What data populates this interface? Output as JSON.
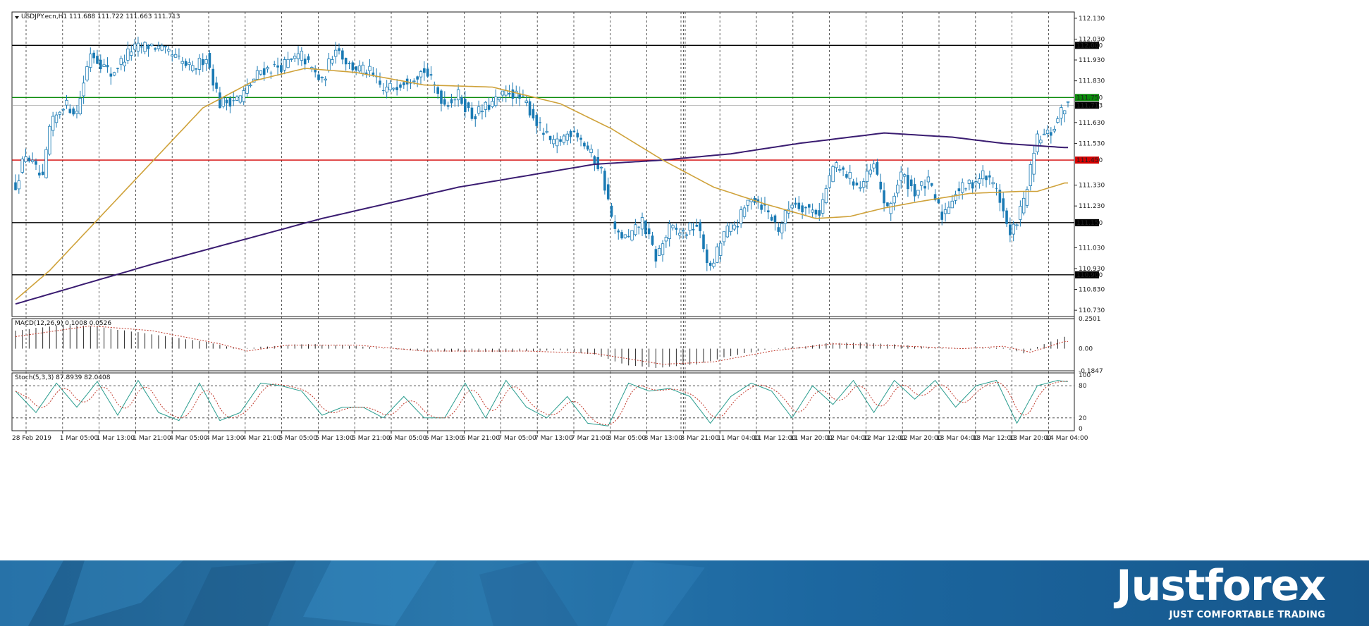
{
  "chart_data": [
    {
      "type": "candlestick",
      "title": "USDJPY.ecn,H1  111.688 111.722 111.663 111.713",
      "ylim": [
        110.7,
        112.16
      ],
      "y_ticks": [
        "112.130",
        "112.030",
        "111.930",
        "111.830",
        "111.630",
        "111.530",
        "111.330",
        "111.230",
        "111.030",
        "110.930",
        "110.830",
        "110.730"
      ],
      "x_ticks": [
        "28 Feb 2019",
        "1 Mar 05:00",
        "1 Mar 13:00",
        "1 Mar 21:00",
        "4 Mar 05:00",
        "4 Mar 13:00",
        "4 Mar 21:00",
        "5 Mar 05:00",
        "5 Mar 13:00",
        "5 Mar 21:00",
        "6 Mar 05:00",
        "6 Mar 13:00",
        "6 Mar 21:00",
        "7 Mar 05:00",
        "7 Mar 13:00",
        "7 Mar 21:00",
        "8 Mar 05:00",
        "8 Mar 13:00",
        "8 Mar 21:00",
        "11 Mar 04:00",
        "11 Mar 12:00",
        "11 Mar 20:00",
        "12 Mar 04:00",
        "12 Mar 12:00",
        "12 Mar 20:00",
        "13 Mar 04:00",
        "13 Mar 12:00",
        "13 Mar 20:00",
        "14 Mar 04:00"
      ],
      "horizontal_levels": [
        {
          "value": 112.0,
          "label": "112.000",
          "color": "#000000"
        },
        {
          "value": 111.75,
          "label": "111.750",
          "color": "#0a8a0a"
        },
        {
          "value": 111.45,
          "label": "111.450",
          "color": "#d40000"
        },
        {
          "value": 111.15,
          "label": "111.150",
          "color": "#000000"
        },
        {
          "value": 110.9,
          "label": "110.900",
          "color": "#000000"
        }
      ],
      "current_price": {
        "value": 111.713,
        "label": "111.713"
      },
      "anchors": [
        {
          "i": 0,
          "p": 111.33
        },
        {
          "i": 3,
          "p": 111.48
        },
        {
          "i": 8,
          "p": 111.35
        },
        {
          "i": 10,
          "p": 111.6
        },
        {
          "i": 14,
          "p": 111.72
        },
        {
          "i": 18,
          "p": 111.68
        },
        {
          "i": 22,
          "p": 111.97
        },
        {
          "i": 28,
          "p": 111.86
        },
        {
          "i": 34,
          "p": 111.98
        },
        {
          "i": 40,
          "p": 112.0
        },
        {
          "i": 46,
          "p": 111.95
        },
        {
          "i": 52,
          "p": 111.88
        },
        {
          "i": 56,
          "p": 111.95
        },
        {
          "i": 60,
          "p": 111.72
        },
        {
          "i": 66,
          "p": 111.75
        },
        {
          "i": 72,
          "p": 111.88
        },
        {
          "i": 78,
          "p": 111.9
        },
        {
          "i": 84,
          "p": 111.95
        },
        {
          "i": 90,
          "p": 111.82
        },
        {
          "i": 94,
          "p": 112.0
        },
        {
          "i": 98,
          "p": 111.9
        },
        {
          "i": 104,
          "p": 111.87
        },
        {
          "i": 108,
          "p": 111.78
        },
        {
          "i": 114,
          "p": 111.83
        },
        {
          "i": 120,
          "p": 111.88
        },
        {
          "i": 126,
          "p": 111.72
        },
        {
          "i": 130,
          "p": 111.76
        },
        {
          "i": 134,
          "p": 111.66
        },
        {
          "i": 140,
          "p": 111.72
        },
        {
          "i": 145,
          "p": 111.78
        },
        {
          "i": 150,
          "p": 111.72
        },
        {
          "i": 154,
          "p": 111.6
        },
        {
          "i": 158,
          "p": 111.52
        },
        {
          "i": 164,
          "p": 111.6
        },
        {
          "i": 168,
          "p": 111.5
        },
        {
          "i": 172,
          "p": 111.4
        },
        {
          "i": 176,
          "p": 111.1
        },
        {
          "i": 180,
          "p": 111.07
        },
        {
          "i": 184,
          "p": 111.16
        },
        {
          "i": 188,
          "p": 110.98
        },
        {
          "i": 192,
          "p": 111.12
        },
        {
          "i": 196,
          "p": 111.1
        },
        {
          "i": 200,
          "p": 111.14
        },
        {
          "i": 204,
          "p": 110.92
        },
        {
          "i": 208,
          "p": 111.1
        },
        {
          "i": 212,
          "p": 111.15
        },
        {
          "i": 216,
          "p": 111.28
        },
        {
          "i": 220,
          "p": 111.22
        },
        {
          "i": 224,
          "p": 111.12
        },
        {
          "i": 228,
          "p": 111.25
        },
        {
          "i": 232,
          "p": 111.22
        },
        {
          "i": 236,
          "p": 111.2
        },
        {
          "i": 240,
          "p": 111.42
        },
        {
          "i": 244,
          "p": 111.38
        },
        {
          "i": 248,
          "p": 111.32
        },
        {
          "i": 252,
          "p": 111.42
        },
        {
          "i": 256,
          "p": 111.2
        },
        {
          "i": 260,
          "p": 111.38
        },
        {
          "i": 264,
          "p": 111.3
        },
        {
          "i": 268,
          "p": 111.34
        },
        {
          "i": 272,
          "p": 111.18
        },
        {
          "i": 276,
          "p": 111.3
        },
        {
          "i": 280,
          "p": 111.33
        },
        {
          "i": 284,
          "p": 111.38
        },
        {
          "i": 288,
          "p": 111.32
        },
        {
          "i": 292,
          "p": 111.08
        },
        {
          "i": 296,
          "p": 111.25
        },
        {
          "i": 300,
          "p": 111.55
        },
        {
          "i": 304,
          "p": 111.58
        },
        {
          "i": 308,
          "p": 111.71
        }
      ],
      "ma_slow": {
        "color": "#3a1c71",
        "points": [
          {
            "i": 0,
            "p": 110.76
          },
          {
            "i": 40,
            "p": 110.95
          },
          {
            "i": 90,
            "p": 111.17
          },
          {
            "i": 130,
            "p": 111.32
          },
          {
            "i": 170,
            "p": 111.43
          },
          {
            "i": 190,
            "p": 111.45
          },
          {
            "i": 210,
            "p": 111.48
          },
          {
            "i": 230,
            "p": 111.53
          },
          {
            "i": 255,
            "p": 111.58
          },
          {
            "i": 275,
            "p": 111.56
          },
          {
            "i": 290,
            "p": 111.53
          },
          {
            "i": 308,
            "p": 111.51
          }
        ]
      },
      "ma_fast": {
        "color": "#cfa23a",
        "points": [
          {
            "i": 0,
            "p": 110.78
          },
          {
            "i": 10,
            "p": 110.92
          },
          {
            "i": 25,
            "p": 111.18
          },
          {
            "i": 40,
            "p": 111.44
          },
          {
            "i": 55,
            "p": 111.7
          },
          {
            "i": 70,
            "p": 111.83
          },
          {
            "i": 85,
            "p": 111.89
          },
          {
            "i": 100,
            "p": 111.87
          },
          {
            "i": 120,
            "p": 111.81
          },
          {
            "i": 140,
            "p": 111.8
          },
          {
            "i": 160,
            "p": 111.72
          },
          {
            "i": 175,
            "p": 111.6
          },
          {
            "i": 190,
            "p": 111.45
          },
          {
            "i": 205,
            "p": 111.32
          },
          {
            "i": 220,
            "p": 111.24
          },
          {
            "i": 235,
            "p": 111.17
          },
          {
            "i": 245,
            "p": 111.18
          },
          {
            "i": 255,
            "p": 111.22
          },
          {
            "i": 265,
            "p": 111.25
          },
          {
            "i": 280,
            "p": 111.29
          },
          {
            "i": 295,
            "p": 111.3
          },
          {
            "i": 300,
            "p": 111.3
          },
          {
            "i": 308,
            "p": 111.34
          }
        ]
      }
    },
    {
      "type": "histogram",
      "title": "MACD(12,26,9) 0.1008 0.0526",
      "ylim": [
        -0.1847,
        0.2501
      ],
      "y_ticks": [
        "0.2501",
        "0.00",
        "-0.1847"
      ],
      "hist_anchors": [
        {
          "i": 0,
          "v": 0.15
        },
        {
          "i": 14,
          "v": 0.2
        },
        {
          "i": 22,
          "v": 0.19
        },
        {
          "i": 40,
          "v": 0.12
        },
        {
          "i": 55,
          "v": 0.06
        },
        {
          "i": 65,
          "v": 0.0
        },
        {
          "i": 75,
          "v": 0.02
        },
        {
          "i": 85,
          "v": 0.04
        },
        {
          "i": 100,
          "v": 0.02
        },
        {
          "i": 120,
          "v": -0.02
        },
        {
          "i": 140,
          "v": -0.03
        },
        {
          "i": 160,
          "v": -0.01
        },
        {
          "i": 170,
          "v": -0.05
        },
        {
          "i": 180,
          "v": -0.14
        },
        {
          "i": 188,
          "v": -0.16
        },
        {
          "i": 200,
          "v": -0.13
        },
        {
          "i": 210,
          "v": -0.06
        },
        {
          "i": 222,
          "v": 0.0
        },
        {
          "i": 232,
          "v": 0.02
        },
        {
          "i": 240,
          "v": 0.05
        },
        {
          "i": 250,
          "v": 0.05
        },
        {
          "i": 265,
          "v": 0.02
        },
        {
          "i": 275,
          "v": 0.0
        },
        {
          "i": 290,
          "v": 0.01
        },
        {
          "i": 296,
          "v": -0.04
        },
        {
          "i": 302,
          "v": 0.04
        },
        {
          "i": 308,
          "v": 0.1
        }
      ],
      "signal_anchors": [
        {
          "i": 0,
          "v": 0.1
        },
        {
          "i": 22,
          "v": 0.19
        },
        {
          "i": 40,
          "v": 0.15
        },
        {
          "i": 60,
          "v": 0.04
        },
        {
          "i": 68,
          "v": -0.02
        },
        {
          "i": 80,
          "v": 0.03
        },
        {
          "i": 100,
          "v": 0.03
        },
        {
          "i": 120,
          "v": -0.02
        },
        {
          "i": 150,
          "v": -0.02
        },
        {
          "i": 170,
          "v": -0.04
        },
        {
          "i": 190,
          "v": -0.13
        },
        {
          "i": 205,
          "v": -0.11
        },
        {
          "i": 222,
          "v": -0.02
        },
        {
          "i": 240,
          "v": 0.04
        },
        {
          "i": 262,
          "v": 0.02
        },
        {
          "i": 278,
          "v": 0.0
        },
        {
          "i": 290,
          "v": 0.02
        },
        {
          "i": 298,
          "v": -0.03
        },
        {
          "i": 308,
          "v": 0.06
        }
      ]
    },
    {
      "type": "line",
      "title": "Stoch(5,3,3) 87.8939 82.0408",
      "ylim": [
        0,
        100
      ],
      "y_ticks": [
        "100",
        "80",
        "20",
        "0"
      ],
      "k_anchors": [
        {
          "i": 0,
          "v": 70
        },
        {
          "i": 6,
          "v": 30
        },
        {
          "i": 12,
          "v": 85
        },
        {
          "i": 18,
          "v": 40
        },
        {
          "i": 24,
          "v": 88
        },
        {
          "i": 30,
          "v": 25
        },
        {
          "i": 36,
          "v": 90
        },
        {
          "i": 42,
          "v": 30
        },
        {
          "i": 48,
          "v": 15
        },
        {
          "i": 54,
          "v": 85
        },
        {
          "i": 60,
          "v": 15
        },
        {
          "i": 66,
          "v": 30
        },
        {
          "i": 72,
          "v": 85
        },
        {
          "i": 78,
          "v": 80
        },
        {
          "i": 84,
          "v": 70
        },
        {
          "i": 90,
          "v": 25
        },
        {
          "i": 96,
          "v": 40
        },
        {
          "i": 102,
          "v": 40
        },
        {
          "i": 108,
          "v": 20
        },
        {
          "i": 114,
          "v": 60
        },
        {
          "i": 120,
          "v": 20
        },
        {
          "i": 126,
          "v": 20
        },
        {
          "i": 132,
          "v": 85
        },
        {
          "i": 138,
          "v": 20
        },
        {
          "i": 144,
          "v": 90
        },
        {
          "i": 150,
          "v": 40
        },
        {
          "i": 156,
          "v": 20
        },
        {
          "i": 162,
          "v": 60
        },
        {
          "i": 168,
          "v": 10
        },
        {
          "i": 174,
          "v": 5
        },
        {
          "i": 180,
          "v": 85
        },
        {
          "i": 186,
          "v": 70
        },
        {
          "i": 192,
          "v": 75
        },
        {
          "i": 198,
          "v": 60
        },
        {
          "i": 204,
          "v": 10
        },
        {
          "i": 210,
          "v": 60
        },
        {
          "i": 216,
          "v": 85
        },
        {
          "i": 222,
          "v": 70
        },
        {
          "i": 228,
          "v": 20
        },
        {
          "i": 234,
          "v": 80
        },
        {
          "i": 240,
          "v": 45
        },
        {
          "i": 246,
          "v": 90
        },
        {
          "i": 252,
          "v": 30
        },
        {
          "i": 258,
          "v": 90
        },
        {
          "i": 264,
          "v": 55
        },
        {
          "i": 270,
          "v": 90
        },
        {
          "i": 276,
          "v": 40
        },
        {
          "i": 282,
          "v": 80
        },
        {
          "i": 288,
          "v": 90
        },
        {
          "i": 294,
          "v": 10
        },
        {
          "i": 300,
          "v": 80
        },
        {
          "i": 306,
          "v": 90
        },
        {
          "i": 308,
          "v": 88
        }
      ]
    }
  ],
  "brand": {
    "name": "Justforex",
    "tagline": "JUST COMFORTABLE TRADING"
  }
}
